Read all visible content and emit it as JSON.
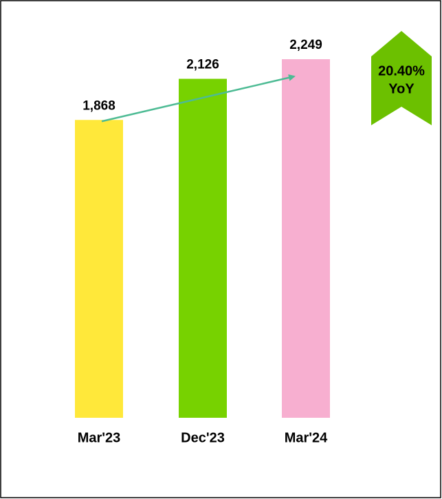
{
  "chart_data": {
    "type": "bar",
    "categories": [
      "Mar'23",
      "Dec'23",
      "Mar'24"
    ],
    "values": [
      1868,
      2126,
      2249
    ],
    "value_labels": [
      "1,868",
      "2,126",
      "2,249"
    ],
    "colors": [
      "#ffe83a",
      "#77d200",
      "#f7afd0"
    ],
    "annotations": [
      "20.40%",
      "YoY"
    ]
  }
}
